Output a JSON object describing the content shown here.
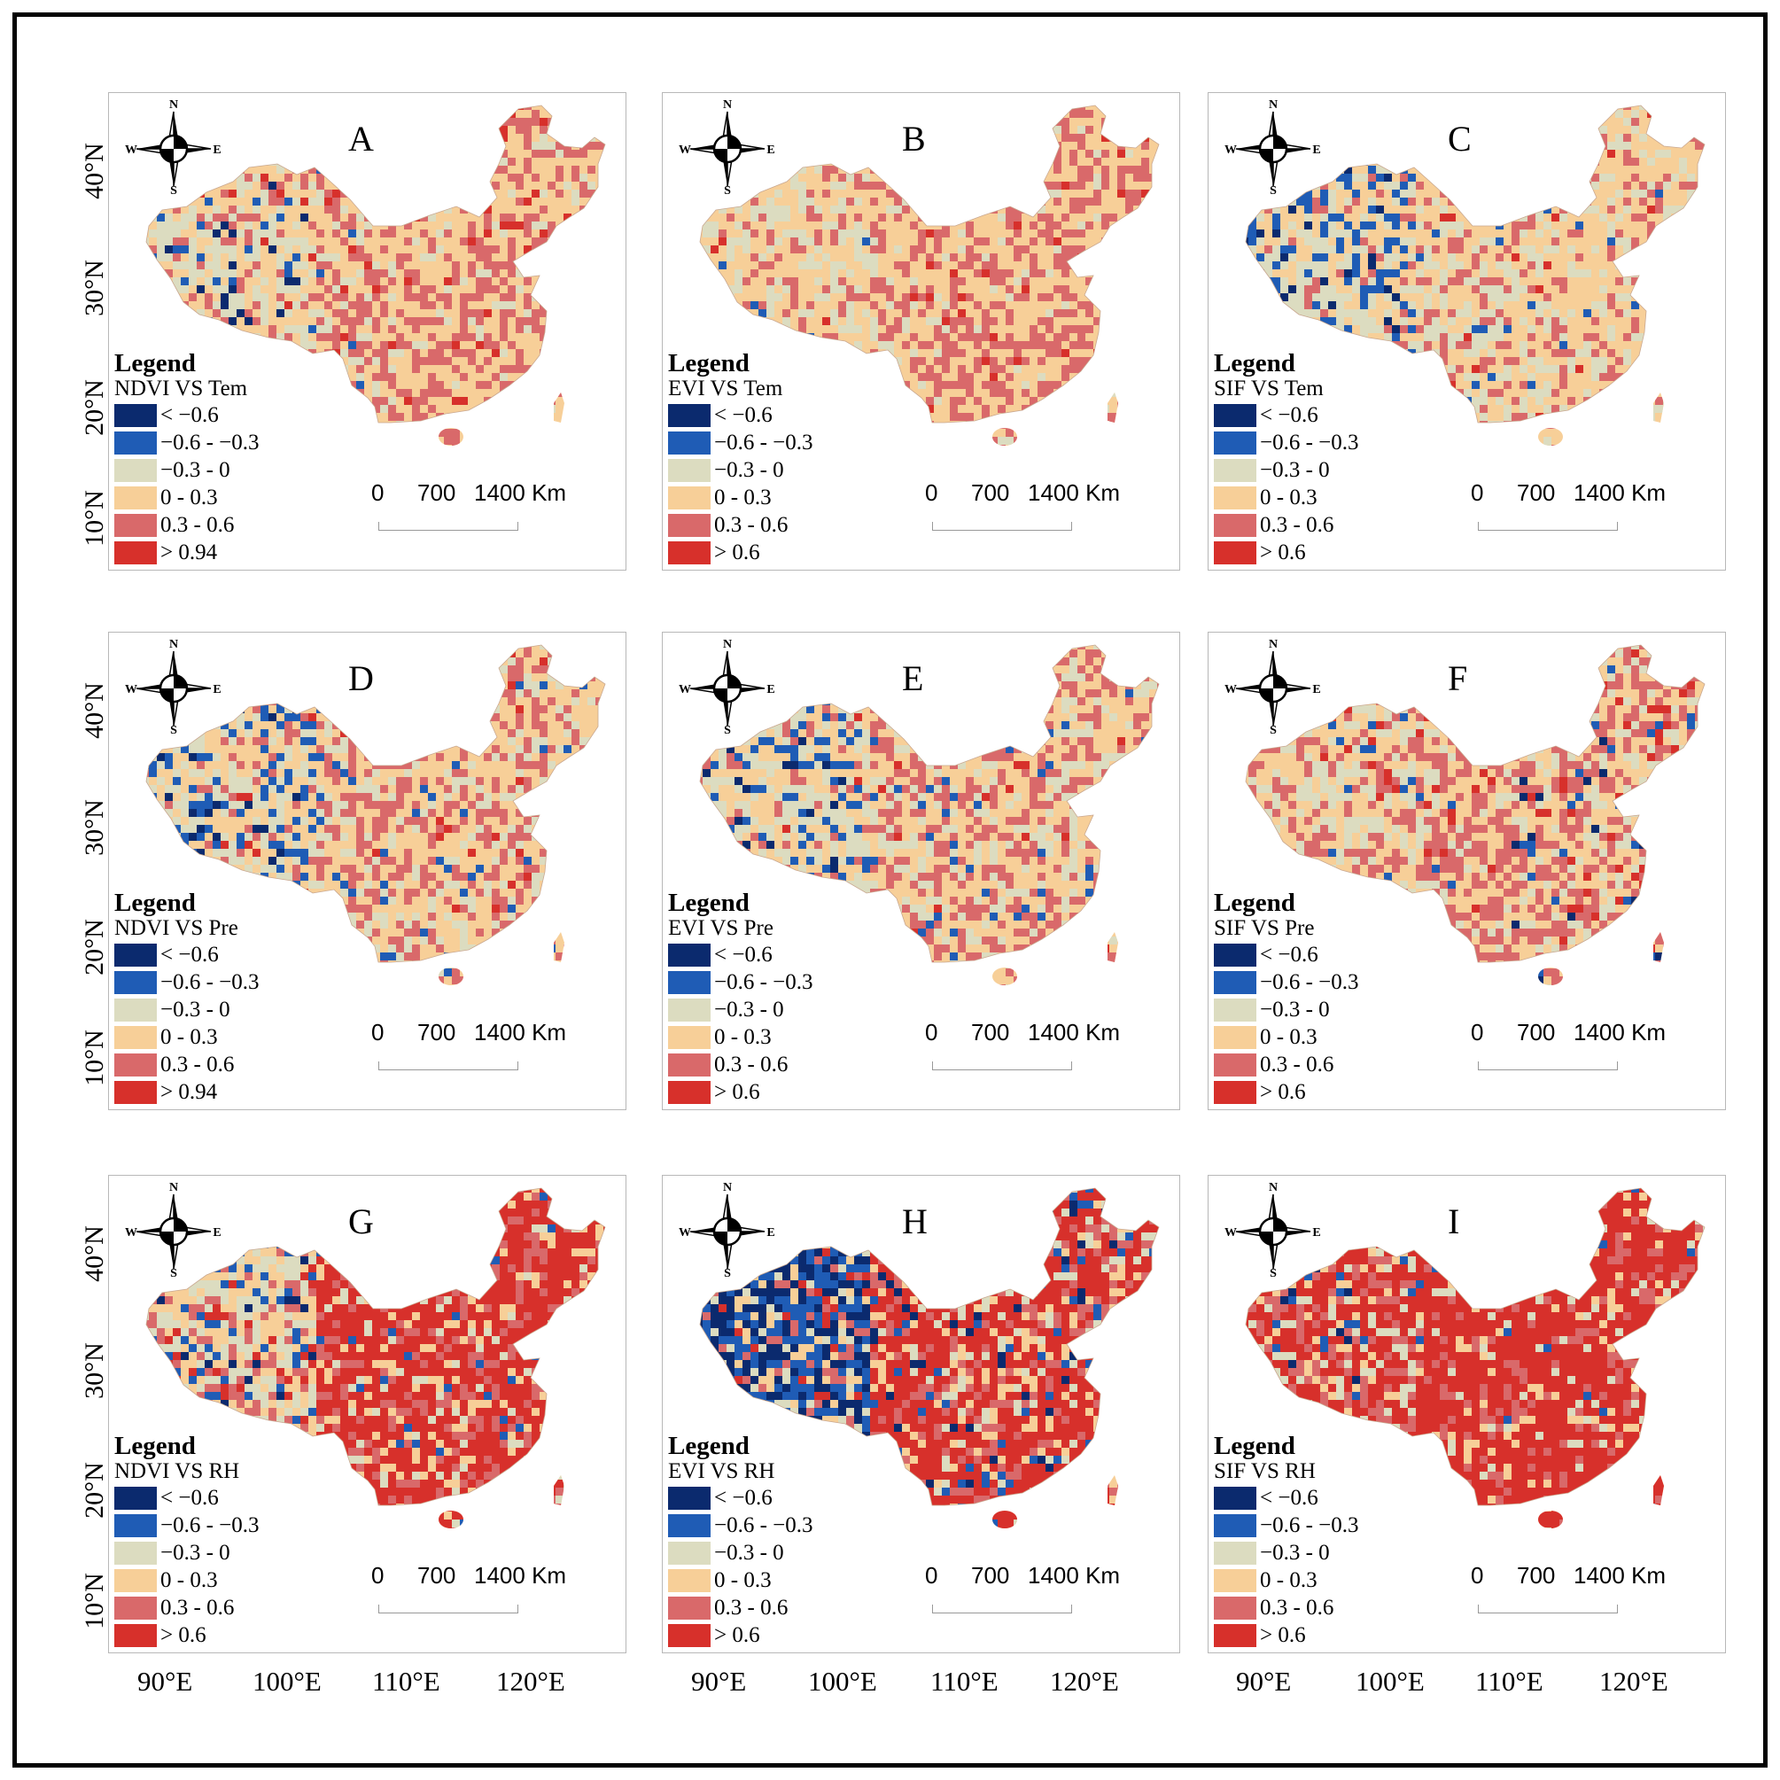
{
  "figure": {
    "panels": [
      {
        "letter": "A",
        "legend_title": "Legend",
        "legend_subtitle": "NDVI VS Tem",
        "classes": [
          "< −0.6",
          "−0.6 - −0.3",
          "−0.3 - 0",
          "0 - 0.3",
          "0.3 - 0.6",
          "> 0.94"
        ]
      },
      {
        "letter": "B",
        "legend_title": "Legend",
        "legend_subtitle": "EVI VS Tem",
        "classes": [
          "< −0.6",
          "−0.6 - −0.3",
          "−0.3 - 0",
          "0 - 0.3",
          "0.3 - 0.6",
          "> 0.6"
        ]
      },
      {
        "letter": "C",
        "legend_title": "Legend",
        "legend_subtitle": "SIF VS Tem",
        "classes": [
          "< −0.6",
          "−0.6 - −0.3",
          "−0.3 - 0",
          "0 - 0.3",
          "0.3 - 0.6",
          "> 0.6"
        ]
      },
      {
        "letter": "D",
        "legend_title": "Legend",
        "legend_subtitle": "NDVI VS Pre",
        "classes": [
          "< −0.6",
          "−0.6 - −0.3",
          "−0.3 - 0",
          "0 - 0.3",
          "0.3 - 0.6",
          "> 0.94"
        ]
      },
      {
        "letter": "E",
        "legend_title": "Legend",
        "legend_subtitle": "EVI VS Pre",
        "classes": [
          "< −0.6",
          "−0.6 - −0.3",
          "−0.3 - 0",
          "0 - 0.3",
          "0.3 - 0.6",
          "> 0.6"
        ]
      },
      {
        "letter": "F",
        "legend_title": "Legend",
        "legend_subtitle": "SIF VS Pre",
        "classes": [
          "< −0.6",
          "−0.6 - −0.3",
          "−0.3 - 0",
          "0 - 0.3",
          "0.3 - 0.6",
          "> 0.6"
        ]
      },
      {
        "letter": "G",
        "legend_title": "Legend",
        "legend_subtitle": "NDVI VS RH",
        "classes": [
          "< −0.6",
          "−0.6 - −0.3",
          "−0.3 - 0",
          "0 - 0.3",
          "0.3 - 0.6",
          "> 0.6"
        ]
      },
      {
        "letter": "H",
        "legend_title": "Legend",
        "legend_subtitle": "EVI VS RH",
        "classes": [
          "< −0.6",
          "−0.6 - −0.3",
          "−0.3 - 0",
          "0 - 0.3",
          "0.3 - 0.6",
          "> 0.6"
        ]
      },
      {
        "letter": "I",
        "legend_title": "Legend",
        "legend_subtitle": "SIF VS RH",
        "classes": [
          "< −0.6",
          "−0.6 - −0.3",
          "−0.3 - 0",
          "0 - 0.3",
          "0.3 - 0.6",
          "> 0.6"
        ]
      }
    ],
    "class_colors": [
      "#0b2a6e",
      "#1f5cb5",
      "#dcdcc0",
      "#f7cf98",
      "#d9696a",
      "#d7302b"
    ],
    "compass": {
      "n": "N",
      "s": "S",
      "e": "E",
      "w": "W"
    },
    "scale_labels": [
      "0",
      "700",
      "1400 Km"
    ],
    "lat_labels": [
      "40°N",
      "30°N",
      "20°N",
      "10°N"
    ],
    "lon_labels": [
      "90°E",
      "100°E",
      "110°E",
      "120°E"
    ]
  }
}
